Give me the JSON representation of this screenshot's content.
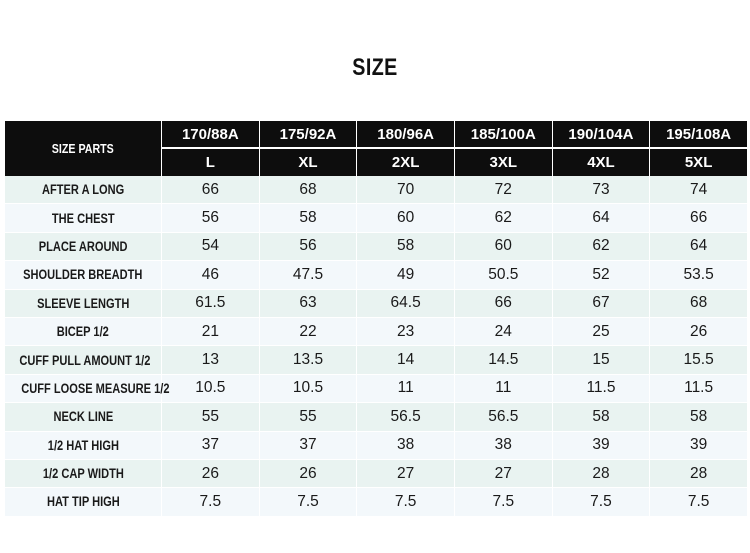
{
  "title": "SIZE",
  "table": {
    "corner_label": "SIZE PARTS",
    "heights": [
      "170/88A",
      "175/92A",
      "180/96A",
      "185/100A",
      "190/104A",
      "195/108A"
    ],
    "sizes": [
      "L",
      "XL",
      "2XL",
      "3XL",
      "4XL",
      "5XL"
    ],
    "rows": [
      {
        "label": "AFTER A LONG",
        "values": [
          "66",
          "68",
          "70",
          "72",
          "73",
          "74"
        ]
      },
      {
        "label": "THE CHEST",
        "values": [
          "56",
          "58",
          "60",
          "62",
          "64",
          "66"
        ]
      },
      {
        "label": "PLACE AROUND",
        "values": [
          "54",
          "56",
          "58",
          "60",
          "62",
          "64"
        ]
      },
      {
        "label": "SHOULDER BREADTH",
        "values": [
          "46",
          "47.5",
          "49",
          "50.5",
          "52",
          "53.5"
        ]
      },
      {
        "label": "SLEEVE LENGTH",
        "values": [
          "61.5",
          "63",
          "64.5",
          "66",
          "67",
          "68"
        ]
      },
      {
        "label": "BICEP 1/2",
        "values": [
          "21",
          "22",
          "23",
          "24",
          "25",
          "26"
        ]
      },
      {
        "label": "CUFF PULL AMOUNT 1/2",
        "values": [
          "13",
          "13.5",
          "14",
          "14.5",
          "15",
          "15.5"
        ]
      },
      {
        "label": "CUFF LOOSE MEASURE 1/2",
        "values": [
          "10.5",
          "10.5",
          "11",
          "11",
          "11.5",
          "11.5"
        ]
      },
      {
        "label": "NECK LINE",
        "values": [
          "55",
          "55",
          "56.5",
          "56.5",
          "58",
          "58"
        ]
      },
      {
        "label": "1/2 HAT HIGH",
        "values": [
          "37",
          "37",
          "38",
          "38",
          "39",
          "39"
        ]
      },
      {
        "label": "1/2 CAP WIDTH",
        "values": [
          "26",
          "26",
          "27",
          "27",
          "28",
          "28"
        ]
      },
      {
        "label": "HAT TIP HIGH",
        "values": [
          "7.5",
          "7.5",
          "7.5",
          "7.5",
          "7.5",
          "7.5"
        ]
      }
    ]
  }
}
